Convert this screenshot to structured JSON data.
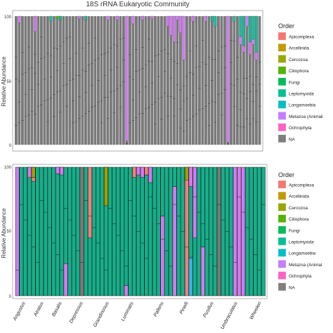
{
  "chart_data": [
    {
      "type": "bar",
      "stacked": true,
      "title": "18S rRNA Eukaryotic Community",
      "ylabel": "Relative Abundance",
      "ylim": [
        0,
        100
      ],
      "yticks": [
        0,
        50,
        100
      ],
      "legend_title": "Order",
      "legend_position": "right",
      "bar_count": 78,
      "default_fill": "NA",
      "segment_lines_per_bar": 3,
      "segments": [
        {
          "bar": 1,
          "order": "Metazoa (Animali",
          "value": 5
        },
        {
          "bar": 6,
          "order": "Metazoa (Animali",
          "value": 12
        },
        {
          "bar": 11,
          "order": "Fungi",
          "value": 4
        },
        {
          "bar": 13,
          "order": "Ciliophora",
          "value": 2
        },
        {
          "bar": 14,
          "order": "Fungi",
          "value": 3
        },
        {
          "bar": 20,
          "order": "Metazoa (Animali",
          "value": 2
        },
        {
          "bar": 22,
          "order": "Fungi",
          "value": 3
        },
        {
          "bar": 29,
          "order": "Metazoa (Animali",
          "value": 3
        },
        {
          "bar": 32,
          "order": "Metazoa (Animali",
          "value": 3
        },
        {
          "bar": 35,
          "order": "Metazoa (Animali",
          "value": 97
        },
        {
          "bar": 37,
          "order": "Metazoa (Animali",
          "value": 6
        },
        {
          "bar": 40,
          "order": "Metazoa (Animali",
          "value": 3
        },
        {
          "bar": 43,
          "order": "Metazoa (Animali",
          "value": 2
        },
        {
          "bar": 48,
          "order": "Metazoa (Animali",
          "value": 8
        },
        {
          "bar": 49,
          "order": "Metazoa (Animali",
          "value": 15
        },
        {
          "bar": 50,
          "order": "Metazoa (Animali",
          "value": 20
        },
        {
          "bar": 51,
          "order": "Metazoa (Animali",
          "value": 3
        },
        {
          "bar": 52,
          "order": "Metazoa (Animali",
          "value": 13
        },
        {
          "bar": 53,
          "order": "Metazoa (Animali",
          "value": 34
        },
        {
          "bar": 56,
          "order": "Metazoa (Animali",
          "value": 4
        },
        {
          "bar": 60,
          "order": "Metazoa (Animali",
          "value": 4
        },
        {
          "bar": 62,
          "order": "Fungi",
          "value": 4
        },
        {
          "bar": 63,
          "order": "Fungi",
          "value": 8
        },
        {
          "bar": 67,
          "order": "Metazoa (Animali",
          "value": 98
        },
        {
          "bar": 69,
          "order": "Fungi",
          "value": 4
        },
        {
          "bar": 71,
          "order": "Fungi",
          "value": 16
        },
        {
          "bar": 71,
          "order": "Metazoa (Animali",
          "value": 6
        },
        {
          "bar": 72,
          "order": "Fungi",
          "value": 23
        },
        {
          "bar": 72,
          "order": "Metazoa (Animali",
          "value": 5
        },
        {
          "bar": 73,
          "order": "Metazoa (Animali",
          "value": 8
        },
        {
          "bar": 74,
          "order": "Fungi",
          "value": 20
        },
        {
          "bar": 74,
          "order": "Metazoa (Animali",
          "value": 10
        },
        {
          "bar": 75,
          "order": "Fungi",
          "value": 18
        },
        {
          "bar": 75,
          "order": "Metazoa (Animali",
          "value": 4
        },
        {
          "bar": 76,
          "order": "Fungi",
          "value": 28
        },
        {
          "bar": 76,
          "order": "Metazoa (Animali",
          "value": 6
        }
      ]
    },
    {
      "type": "bar",
      "stacked": true,
      "ylabel": "Relative Abundance",
      "ylim": [
        0,
        100
      ],
      "yticks": [
        0,
        50,
        100
      ],
      "legend_title": "Order",
      "legend_position": "right",
      "categories": [
        "Angustus",
        "Atratus",
        "Basalis",
        "Depressus",
        "Grandinosus",
        "Luminatis",
        "Pallens",
        "Pinelli",
        "Pusillus",
        "Umbraculatus",
        "Wheeleri"
      ],
      "bars": [
        [
          {
            "order": "Metazoa (Animal",
            "value": 100
          }
        ],
        [
          {
            "order": "Fungi",
            "value": 100
          }
        ],
        [
          {
            "order": "Fungi",
            "value": 100
          }
        ],
        [
          {
            "order": "Fungi",
            "value": 100
          }
        ],
        [
          {
            "order": "Fungi",
            "value": 100
          }
        ],
        [
          {
            "order": "Fungi",
            "value": 100
          }
        ],
        [
          {
            "order": "Fungi",
            "value": 100
          }
        ],
        [
          {
            "order": "Fungi",
            "value": 100
          }
        ],
        [
          {
            "order": "Fungi",
            "value": 100
          }
        ],
        [
          {
            "order": "Fungi",
            "value": 100
          }
        ],
        [
          {
            "order": "Fungi",
            "value": 100
          }
        ],
        [
          {
            "order": "Fungi",
            "value": 100
          }
        ],
        [
          {
            "order": "Metazoa (Animal",
            "value": 25
          },
          {
            "order": "Fungi",
            "value": 75
          }
        ],
        [
          {
            "order": "Fungi",
            "value": 100
          }
        ],
        [
          {
            "order": "Fungi",
            "value": 100
          }
        ],
        [
          {
            "order": "Fungi",
            "value": 100
          }
        ],
        [
          {
            "order": "NA",
            "value": 100
          }
        ],
        [
          {
            "order": "Fungi",
            "value": 100
          }
        ],
        [
          {
            "order": "Fungi",
            "value": 45
          },
          {
            "order": "Apicomplexa",
            "value": 55
          }
        ],
        [
          {
            "order": "Fungi",
            "value": 100
          }
        ],
        [
          {
            "order": "Fungi",
            "value": 100
          }
        ],
        [
          {
            "order": "Fungi",
            "value": 100
          }
        ],
        [
          {
            "order": "Fungi",
            "value": 100
          }
        ],
        [
          {
            "order": "Fungi",
            "value": 100
          }
        ],
        [
          {
            "order": "Fungi",
            "value": 100
          }
        ],
        [
          {
            "order": "Fungi",
            "value": 100
          }
        ],
        [
          {
            "order": "Fungi",
            "value": 100
          }
        ],
        [
          {
            "order": "Metazoa (Animal",
            "value": 8
          },
          {
            "order": "Fungi",
            "value": 92
          }
        ],
        [
          {
            "order": "Fungi",
            "value": 100
          }
        ],
        [
          {
            "order": "Fungi",
            "value": 100
          }
        ],
        [
          {
            "order": "Fungi",
            "value": 100
          }
        ],
        [
          {
            "order": "Fungi",
            "value": 100
          }
        ],
        [
          {
            "order": "Fungi",
            "value": 94
          },
          {
            "order": "Apicomplexa",
            "value": 6
          }
        ],
        [
          {
            "order": "Fungi",
            "value": 100
          }
        ],
        [
          {
            "order": "Fungi",
            "value": 100
          }
        ],
        [
          {
            "order": "Fungi",
            "value": 100
          }
        ],
        [
          {
            "order": "Metazoa (Animal",
            "value": 62
          },
          {
            "order": "Fungi",
            "value": 38
          }
        ],
        [
          {
            "order": "Fungi",
            "value": 100
          }
        ],
        [
          {
            "order": "Fungi",
            "value": 100
          }
        ],
        [
          {
            "order": "Metazoa (Animal",
            "value": 85
          },
          {
            "order": "Fungi",
            "value": 15
          }
        ],
        [
          {
            "order": "Fungi",
            "value": 100
          }
        ],
        [
          {
            "order": "Fungi",
            "value": 100
          }
        ],
        [
          {
            "order": "Apicomplexa",
            "value": 100
          }
        ],
        [
          {
            "order": "Leptomyxida",
            "value": 30
          },
          {
            "order": "Fungi",
            "value": 70
          }
        ],
        [
          {
            "order": "Fungi",
            "value": 100
          }
        ],
        [
          {
            "order": "Fungi",
            "value": 100
          }
        ],
        [
          {
            "order": "Metazoa (Animal",
            "value": 38
          },
          {
            "order": "Fungi",
            "value": 62
          }
        ],
        [
          {
            "order": "Fungi",
            "value": 100
          }
        ],
        [
          {
            "order": "Fungi",
            "value": 100
          }
        ],
        [
          {
            "order": "Fungi",
            "value": 100
          }
        ],
        [
          {
            "order": "NA",
            "value": 100
          }
        ],
        [
          {
            "order": "Fungi",
            "value": 100
          }
        ],
        [
          {
            "order": "Fungi",
            "value": 100
          }
        ],
        [
          {
            "order": "Fungi",
            "value": 100
          }
        ],
        [
          {
            "order": "Metazoa (Animal",
            "value": 100
          }
        ],
        [
          {
            "order": "Metazoa (Animal",
            "value": 100
          }
        ],
        [
          {
            "order": "Metazoa (Animal",
            "value": 100
          }
        ],
        [
          {
            "order": "Fungi",
            "value": 100
          }
        ],
        [
          {
            "order": "Fungi",
            "value": 100
          }
        ],
        [
          {
            "order": "Fungi",
            "value": 100
          }
        ],
        [
          {
            "order": "Fungi",
            "value": 100
          }
        ],
        [
          {
            "order": "Fungi",
            "value": 100
          }
        ]
      ],
      "extra_segments": [
        {
          "bar": 4,
          "order": "Cercozoa",
          "value": 8
        },
        {
          "bar": 4,
          "order": "Apicomplexa",
          "value": 3
        },
        {
          "bar": 3,
          "order": "Metazoa (Animal",
          "value": 8
        },
        {
          "bar": 10,
          "order": "Metazoa (Animal",
          "value": 5
        },
        {
          "bar": 11,
          "order": "Metazoa (Animal",
          "value": 6
        },
        {
          "bar": 22,
          "order": "Cercozoa",
          "value": 30
        },
        {
          "bar": 29,
          "order": "Apicomplexa",
          "value": 8
        },
        {
          "bar": 30,
          "order": "Metazoa (Animal",
          "value": 6
        },
        {
          "bar": 31,
          "order": "Metazoa (Animal",
          "value": 8
        },
        {
          "bar": 33,
          "order": "Metazoa (Animal",
          "value": 12
        },
        {
          "bar": 42,
          "order": "Cercozoa",
          "value": 10
        },
        {
          "bar": 43,
          "order": "Metazoa (Animal",
          "value": 15
        },
        {
          "bar": 44,
          "order": "Metazoa (Animal",
          "value": 55
        }
      ]
    }
  ],
  "legend": {
    "title": "Order",
    "top_items": [
      {
        "label": "Apicomplexa",
        "color": "#F8766D"
      },
      {
        "label": "Arcellinida",
        "color": "#C49A00"
      },
      {
        "label": "Cercozoa",
        "color": "#99A800"
      },
      {
        "label": "Ciliophora",
        "color": "#53B400"
      },
      {
        "label": "Fungi",
        "color": "#00BC56"
      },
      {
        "label": "Leptomyxida",
        "color": "#00C094"
      },
      {
        "label": "Longamoebia",
        "color": "#00BFC4"
      },
      {
        "label": "Metazoa (Animali",
        "color": "#C77CFF"
      },
      {
        "label": "Ochrophyta",
        "color": "#FF61C3"
      },
      {
        "label": "NA",
        "color": "#7F7F7F"
      }
    ],
    "bottom_items": [
      {
        "label": "Apicomplexa",
        "color": "#F8766D"
      },
      {
        "label": "Arcellinida",
        "color": "#C49A00"
      },
      {
        "label": "Cercozoa",
        "color": "#99A800"
      },
      {
        "label": "Ciliophora",
        "color": "#53B400"
      },
      {
        "label": "Fungi",
        "color": "#00BC56"
      },
      {
        "label": "Leptomyxida",
        "color": "#00C094"
      },
      {
        "label": "Longamoebia",
        "color": "#00BFC4"
      },
      {
        "label": "Metazoa (Animal",
        "color": "#C77CFF"
      },
      {
        "label": "Ochrophyta",
        "color": "#FF61C3"
      },
      {
        "label": "NA",
        "color": "#7F7F7F"
      }
    ]
  },
  "bar_colors": {
    "Apicomplexa": "#F0807A",
    "Arcellinida": "#C49A00",
    "Cercozoa": "#A0A000",
    "Ciliophora": "#5CB300",
    "Fungi": "#14B08A",
    "Fungi_top": "#20B89A",
    "Leptomyxida": "#2DB8E8",
    "Longamoebia": "#3AA0E8",
    "Metazoa (Animali": "#D07CF0",
    "Metazoa (Animal": "#D07CF0",
    "Ochrophyta": "#FF61C3",
    "NA": "#7A7A7A"
  }
}
